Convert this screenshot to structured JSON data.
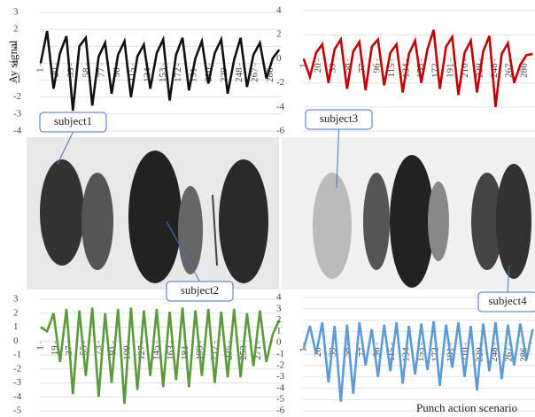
{
  "chart_data": [
    {
      "type": "line",
      "ylabel": "Ay signal",
      "color": "#111111",
      "x": [
        1,
        9,
        17,
        25,
        33,
        41,
        49,
        57,
        65,
        73,
        81,
        89,
        97,
        105,
        113,
        121,
        129,
        137,
        145,
        153,
        161,
        169,
        177,
        185,
        193,
        201,
        209,
        217,
        225,
        233,
        241,
        249,
        257,
        265,
        273,
        281,
        289,
        297
      ],
      "values": [
        0,
        1.9,
        -1.5,
        0.6,
        1.6,
        -2.8,
        1,
        1.5,
        -2.5,
        0.4,
        1.2,
        -1.8,
        0.5,
        1.3,
        -2,
        0.4,
        1.1,
        -1.5,
        0.6,
        1.4,
        -2.2,
        0.5,
        1.5,
        -1.6,
        0.3,
        1.3,
        -1.2,
        0.6,
        1.4,
        -1.8,
        0.2,
        1.5,
        -1.4,
        0.5,
        1.2,
        -0.9,
        0.3,
        0.8
      ],
      "xlim": [
        0,
        300
      ],
      "xticks": [
        1,
        20,
        39,
        58,
        77,
        96,
        115,
        134,
        153,
        172,
        191,
        210,
        229,
        248,
        267,
        286
      ],
      "ylim": [
        -4,
        3
      ],
      "yticks": [
        -4,
        -3,
        -2,
        -1,
        0,
        1,
        2,
        3
      ]
    },
    {
      "type": "line",
      "color": "#c00000",
      "x": [
        1,
        9,
        17,
        25,
        33,
        41,
        49,
        57,
        65,
        73,
        81,
        89,
        97,
        105,
        113,
        121,
        129,
        137,
        145,
        153,
        161,
        169,
        177,
        185,
        193,
        201,
        209,
        217,
        225,
        233,
        241,
        249,
        257,
        265,
        273,
        281,
        289,
        297
      ],
      "values": [
        0,
        -1.5,
        0.5,
        1.2,
        -2,
        0.8,
        1.6,
        -2.5,
        0.6,
        1.4,
        -2.6,
        1,
        1.6,
        -2.2,
        0.5,
        1.2,
        -2.8,
        0.4,
        1.5,
        -2,
        0.8,
        2.4,
        -2.5,
        1,
        1.8,
        -3,
        0.5,
        1.5,
        -2.8,
        0.6,
        1.9,
        -4,
        0.4,
        1.3,
        -2,
        -0.5,
        0.3,
        0.4
      ],
      "xlim": [
        0,
        300
      ],
      "xticks": [
        1,
        20,
        39,
        58,
        77,
        96,
        115,
        134,
        153,
        172,
        191,
        210,
        229,
        248,
        267,
        286
      ],
      "ylim": [
        -6,
        4
      ],
      "yticks": [
        -6,
        -4,
        -2,
        0,
        2,
        4
      ]
    },
    {
      "type": "line",
      "color": "#5a9a3a",
      "x": [
        1,
        9,
        17,
        25,
        33,
        41,
        49,
        57,
        65,
        73,
        81,
        89,
        97,
        105,
        113,
        121,
        129,
        137,
        145,
        153,
        161,
        169,
        177,
        185,
        193,
        201,
        209,
        217,
        225,
        233,
        241,
        249,
        257,
        265,
        273,
        281,
        289,
        297
      ],
      "values": [
        1,
        0.7,
        2,
        -1.5,
        2.3,
        -3.8,
        2.2,
        -2.5,
        2.4,
        -4,
        2,
        -3,
        2.3,
        -4.5,
        2.4,
        -3.5,
        2.2,
        -2.5,
        2.3,
        -3.3,
        2.1,
        -2.8,
        2.4,
        -3.3,
        2.2,
        -2.5,
        2.3,
        -3,
        2.1,
        -2.6,
        2.3,
        -2.6,
        2,
        -1.8,
        2.2,
        -1.5,
        0.5,
        1.5
      ],
      "xlim": [
        0,
        300
      ],
      "xticks": [
        1,
        19,
        37,
        55,
        73,
        91,
        109,
        127,
        145,
        163,
        181,
        199,
        217,
        235,
        253,
        271
      ],
      "ylim": [
        -5,
        3
      ],
      "yticks": [
        -5,
        -4,
        -3,
        -2,
        -1,
        0,
        1,
        2,
        3
      ]
    },
    {
      "type": "line",
      "color": "#5b9bd5",
      "x": [
        1,
        9,
        17,
        25,
        33,
        41,
        49,
        57,
        65,
        73,
        81,
        89,
        97,
        105,
        113,
        121,
        129,
        137,
        145,
        153,
        161,
        169,
        177,
        185,
        193,
        201,
        209,
        217,
        225,
        233,
        241,
        249,
        257,
        265,
        273,
        281,
        289,
        297
      ],
      "values": [
        -0.5,
        1.5,
        -1,
        1.8,
        -3.5,
        1.5,
        -5.2,
        1.6,
        -4.5,
        1.8,
        -2,
        1.2,
        -3,
        1.6,
        -2.5,
        1.8,
        -3.6,
        1.5,
        -2.8,
        1.7,
        -2.4,
        1.9,
        -3.8,
        1.6,
        -2.2,
        1.8,
        -3,
        1.5,
        -4.2,
        1.7,
        -2.5,
        1.8,
        -3.2,
        1.6,
        -2,
        1.7,
        -1.5,
        1.2
      ],
      "xlim": [
        0,
        300
      ],
      "xticks": [
        1,
        20,
        39,
        58,
        77,
        96,
        115,
        134,
        153,
        172,
        191,
        210,
        229,
        248,
        267,
        286
      ],
      "ylim": [
        -6,
        4
      ],
      "yticks": [
        -6,
        -5,
        -4,
        -3,
        -2,
        -1,
        0,
        1,
        2,
        3,
        4
      ]
    }
  ],
  "photo_labels": [
    "subject1",
    "subject2",
    "subject3",
    "subject4"
  ],
  "caption": "Punch action scenario"
}
